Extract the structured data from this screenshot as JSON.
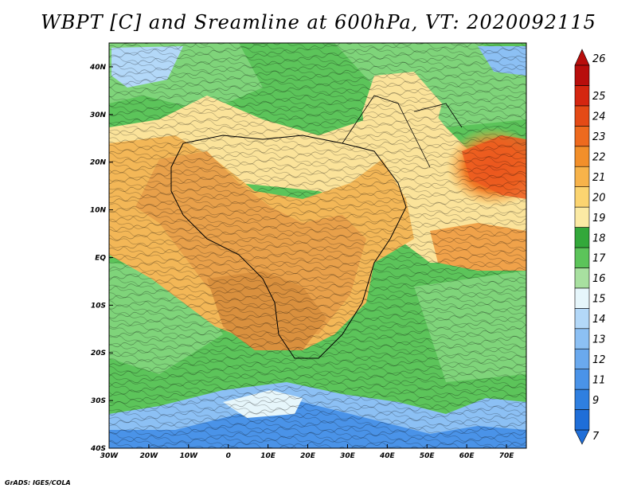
{
  "title": "WBPT [C] and Sreamline at 600hPa, VT: 2020092115",
  "credit": "GrADS: IGES/COLA",
  "map": {
    "lon_ticks": [
      "30W",
      "20W",
      "10W",
      "0",
      "10E",
      "20E",
      "30E",
      "40E",
      "50E",
      "60E",
      "70E"
    ],
    "lat_ticks": [
      "40N",
      "30N",
      "20N",
      "10N",
      "EQ",
      "10S",
      "20S",
      "30S",
      "40S"
    ],
    "lon_range": [
      -30,
      75
    ],
    "lat_range": [
      -40,
      45
    ]
  },
  "colorbar": {
    "labels": [
      "7",
      "9",
      "11",
      "12",
      "13",
      "14",
      "15",
      "16",
      "17",
      "18",
      "19",
      "20",
      "21",
      "22",
      "23",
      "24",
      "25",
      "26"
    ],
    "colors": [
      "#1f6ed8",
      "#2f7fe0",
      "#4a93e8",
      "#6aa9ee",
      "#8cc0f4",
      "#b3d8f8",
      "#e6f6fb",
      "#a8e0a0",
      "#5cc45a",
      "#33a83a",
      "#fbeaa4",
      "#fbd470",
      "#f7b34a",
      "#f28f2a",
      "#ee6a1e",
      "#e44a16",
      "#d42610",
      "#b80e0c"
    ]
  },
  "regions": {
    "ocean_north": "#5cc45a",
    "sahel_warm": "#f5c060",
    "equatorial_warm": "#e6a048",
    "arabian_sea_hot": "#ec5a1e",
    "south_atlantic_cool": "#5cc45a",
    "southern_cold": "#6aa9ee"
  }
}
